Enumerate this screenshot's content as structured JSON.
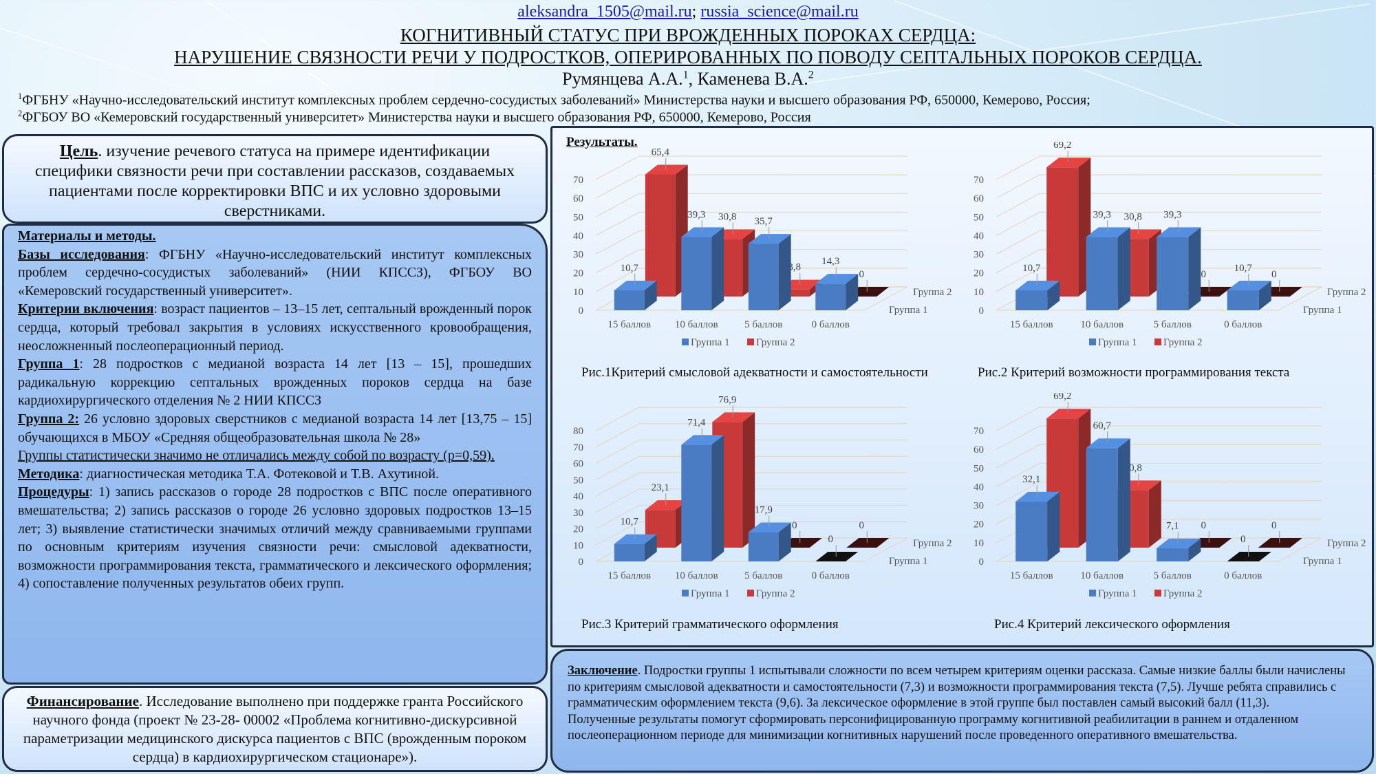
{
  "header": {
    "email1": "aleksandra_1505@mail.ru",
    "email_sep": ";",
    "email2": "russia_science@mail.ru",
    "title_line1": "КОГНИТИВНЫЙ СТАТУС ПРИ ВРОЖДЕННЫХ ПОРОКАХ СЕРДЦА:",
    "title_line2": "НАРУШЕНИЕ СВЯЗНОСТИ РЕЧИ У ПОДРОСТКОВ, ОПЕРИРОВАННЫХ ПО ПОВОДУ СЕПТАЛЬНЫХ ПОРОКОВ СЕРДЦА.",
    "author1": "Румянцева А.А.",
    "author1_sup": "1",
    "author_sep": ", ",
    "author2": "Каменева В.А.",
    "author2_sup": "2",
    "aff1_sup": "1",
    "aff1": "ФГБНУ «Научно-исследовательский институт комплексных проблем сердечно-сосудистых заболеваний» Министерства науки и высшего образования РФ, 650000, Кемерово, Россия;",
    "aff2_sup": "2",
    "aff2": "ФГБОУ ВО «Кемеровский государственный университет» Министерства науки и высшего образования РФ, 650000, Кемерово, Россия"
  },
  "goal": {
    "label": "Цель",
    "text": ". изучение речевого статуса на примере идентификации специфики связности речи при составлении рассказов, создаваемых пациентами после корректировки ВПС и их условно здоровыми сверстниками."
  },
  "methods": {
    "heading": "Материалы и методы.",
    "bases_label": "Базы исследования",
    "bases_text": ": ФГБНУ «Научно-исследовательский институт комплексных проблем сердечно-сосудистых заболеваний» (НИИ КПССЗ), ФГБОУ ВО «Кемеровский государственный университет».",
    "criteria_label": "Критерии включения",
    "criteria_text": ": возраст пациентов – 13–15 лет, септальный врожденный порок сердца, который требовал закрытия в условиях искусственного кровообращения, неосложненный послеоперационный период.",
    "group1_label": "Группа 1",
    "group1_text": ": 28 подростков с медианой возраста 14 лет [13 – 15], прошедших радикальную коррекцию септальных врожденных пороков сердца на базе кардиохирургического отделения № 2 НИИ КПССЗ",
    "group2_label": "Группа 2:",
    "group2_text": " 26 условно здоровых сверстников с медианой возраста 14 лет [13,75 – 15] обучающихся в МБОУ «Средняя общеобразовательная школа № 28»",
    "stat_text": "Группы статистически значимо не отличались между собой по возрасту (p=0,59).",
    "method_label": "Методика",
    "method_text": ": диагностическая методика Т.А. Фотековой и Т.В. Ахутиной.",
    "proc_label": "Процедуры",
    "proc_text": ": 1) запись рассказов о городе 28 подростков с ВПС после оперативного вмешательства; 2) запись рассказов о городе 26 условно здоровых подростков 13–15 лет; 3) выявление статистически значимых отличий между сравниваемыми группами по основным критериям изучения связности речи: смысловой адекватности, возможности программирования текста, грамматического и лексического оформления; 4) сопоставление полученных результатов обеих групп."
  },
  "funding": {
    "label": "Финансирование",
    "text": ". Исследование выполнено при поддержке гранта Российского научного фонда (проект № 23-28- 00002 «Проблема когнитивно-дискурсивной параметризации медицинского дискурса пациентов с ВПС (врожденным пороком сердца) в кардиохирургическом стационаре»)."
  },
  "results": {
    "title": "Результаты."
  },
  "conclusion": {
    "label": "Заключение",
    "text1": ". Подростки группы 1 испытывали сложности по всем четырем критериям оценки рассказа. Самые низкие баллы были начислены по критериям смысловой адекватности и самостоятельности (7,3) и возможности программирования текста (7,5). Лучше ребята справились с грамматическим оформлением текста (9,6). За лексическое оформление в этой группе был поставлен самый высокий балл (11,3).",
    "text2": "Полученные результаты помогут сформировать персонифицированную программу когнитивной реабилитации в раннем и отдаленном послеоперационном периоде для минимизации когнитивных нарушений после проведенного оперативного вмешательства."
  },
  "colors": {
    "group1": "#4a7cc4",
    "group2": "#c83a3a",
    "panel_border": "#1f2c44"
  },
  "chart_data": [
    {
      "type": "bar",
      "title": "Рис.1Критерий смысловой адекватности и самостоятельности",
      "categories": [
        "15 баллов",
        "10 баллов",
        "5 баллов",
        "0 баллов"
      ],
      "series": [
        {
          "name": "Группа 1",
          "values": [
            10.7,
            39.3,
            35.7,
            14.3
          ],
          "labels": [
            "10,7",
            "39,3",
            "35,7",
            "14,3"
          ]
        },
        {
          "name": "Группа 2",
          "values": [
            65.4,
            30.8,
            3.8,
            0
          ],
          "labels": [
            "65,4",
            "30,8",
            "3,8",
            "0"
          ]
        }
      ],
      "ylim": [
        0,
        70
      ],
      "yticks": [
        0,
        10,
        20,
        30,
        40,
        50,
        60,
        70
      ],
      "legend": "bottom",
      "grid": true
    },
    {
      "type": "bar",
      "title": "Рис.2 Критерий возможности программирования текста",
      "categories": [
        "15 баллов",
        "10 баллов",
        "5 баллов",
        "0 баллов"
      ],
      "series": [
        {
          "name": "Группа 1",
          "values": [
            10.7,
            39.3,
            39.3,
            10.7
          ],
          "labels": [
            "10,7",
            "39,3",
            "39,3",
            "10,7"
          ]
        },
        {
          "name": "Группа 2",
          "values": [
            69.2,
            30.8,
            0,
            0
          ],
          "labels": [
            "69,2",
            "30,8",
            "0",
            "0"
          ]
        }
      ],
      "ylim": [
        0,
        70
      ],
      "yticks": [
        0,
        10,
        20,
        30,
        40,
        50,
        60,
        70
      ],
      "legend": "bottom",
      "grid": true
    },
    {
      "type": "bar",
      "title": "Рис.3 Критерий грамматического оформления",
      "categories": [
        "15 баллов",
        "10 баллов",
        "5 баллов",
        "0 баллов"
      ],
      "series": [
        {
          "name": "Группа 1",
          "values": [
            10.7,
            71.4,
            17.9,
            0
          ],
          "labels": [
            "10,7",
            "71,4",
            "17,9",
            "0"
          ]
        },
        {
          "name": "Группа 2",
          "values": [
            23.1,
            76.9,
            0,
            0
          ],
          "labels": [
            "23,1",
            "76,9",
            "0",
            "0"
          ]
        }
      ],
      "ylim": [
        0,
        80
      ],
      "yticks": [
        0,
        10,
        20,
        30,
        40,
        50,
        60,
        70,
        80
      ],
      "legend": "bottom",
      "grid": true
    },
    {
      "type": "bar",
      "title": "Рис.4 Критерий лексического оформления",
      "categories": [
        "15 баллов",
        "10 баллов",
        "5 баллов",
        "0 баллов"
      ],
      "series": [
        {
          "name": "Группа 1",
          "values": [
            32.1,
            60.7,
            7.1,
            0
          ],
          "labels": [
            "32,1",
            "60,7",
            "7,1",
            "0"
          ]
        },
        {
          "name": "Группа 2",
          "values": [
            69.2,
            30.8,
            0,
            0
          ],
          "labels": [
            "69,2",
            "30,8",
            "0",
            "0"
          ]
        }
      ],
      "ylim": [
        0,
        70
      ],
      "yticks": [
        0,
        10,
        20,
        30,
        40,
        50,
        60,
        70
      ],
      "legend": "bottom",
      "grid": true
    }
  ]
}
